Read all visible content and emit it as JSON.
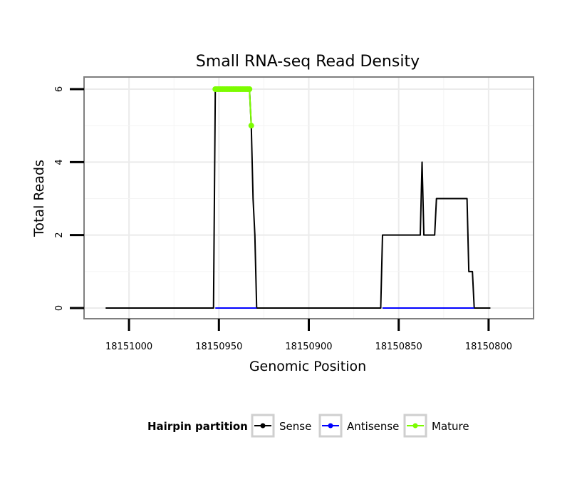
{
  "chart_data": {
    "type": "line",
    "title": "Small RNA-seq Read Density",
    "xlabel": "Genomic Position",
    "ylabel": "Total Reads",
    "xlim": [
      18151025,
      18150775
    ],
    "ylim": [
      0,
      6.3
    ],
    "x_reversed": true,
    "x_ticks": [
      18151000,
      18150950,
      18150900,
      18150850,
      18150800
    ],
    "x_tick_labels": [
      "18151000",
      "18150950",
      "18150900",
      "18150850",
      "18150800"
    ],
    "y_ticks": [
      0,
      2,
      4,
      6
    ],
    "y_tick_labels": [
      "0",
      "2",
      "4",
      "6"
    ],
    "legend": {
      "title": "Hairpin partition",
      "position": "bottom",
      "entries": [
        "Sense",
        "Antisense",
        "Mature"
      ]
    },
    "series": [
      {
        "name": "Sense",
        "color": "#000000",
        "x": [
          18151013,
          18150953,
          18150952,
          18150933,
          18150932,
          18150931,
          18150930,
          18150929,
          18150929,
          18150860,
          18150859,
          18150838,
          18150837,
          18150836,
          18150835,
          18150830,
          18150829,
          18150812,
          18150811,
          18150809,
          18150808,
          18150799
        ],
        "y": [
          0,
          0,
          6,
          6,
          5,
          3,
          2,
          0,
          0,
          0,
          2,
          2,
          4,
          2,
          2,
          2,
          3,
          3,
          1,
          1,
          0,
          0
        ]
      },
      {
        "name": "Antisense",
        "color": "#0000ff",
        "x": [
          18150952,
          18150929,
          18150859,
          18150808
        ],
        "y": [
          0,
          0,
          0,
          0
        ]
      },
      {
        "name": "Mature",
        "color": "#7cfc00",
        "x": [
          18150952,
          18150951,
          18150950,
          18150949,
          18150948,
          18150947,
          18150946,
          18150945,
          18150944,
          18150943,
          18150942,
          18150941,
          18150940,
          18150939,
          18150938,
          18150937,
          18150936,
          18150935,
          18150934,
          18150933,
          18150932
        ],
        "y": [
          6,
          6,
          6,
          6,
          6,
          6,
          6,
          6,
          6,
          6,
          6,
          6,
          6,
          6,
          6,
          6,
          6,
          6,
          6,
          6,
          5
        ]
      }
    ]
  }
}
